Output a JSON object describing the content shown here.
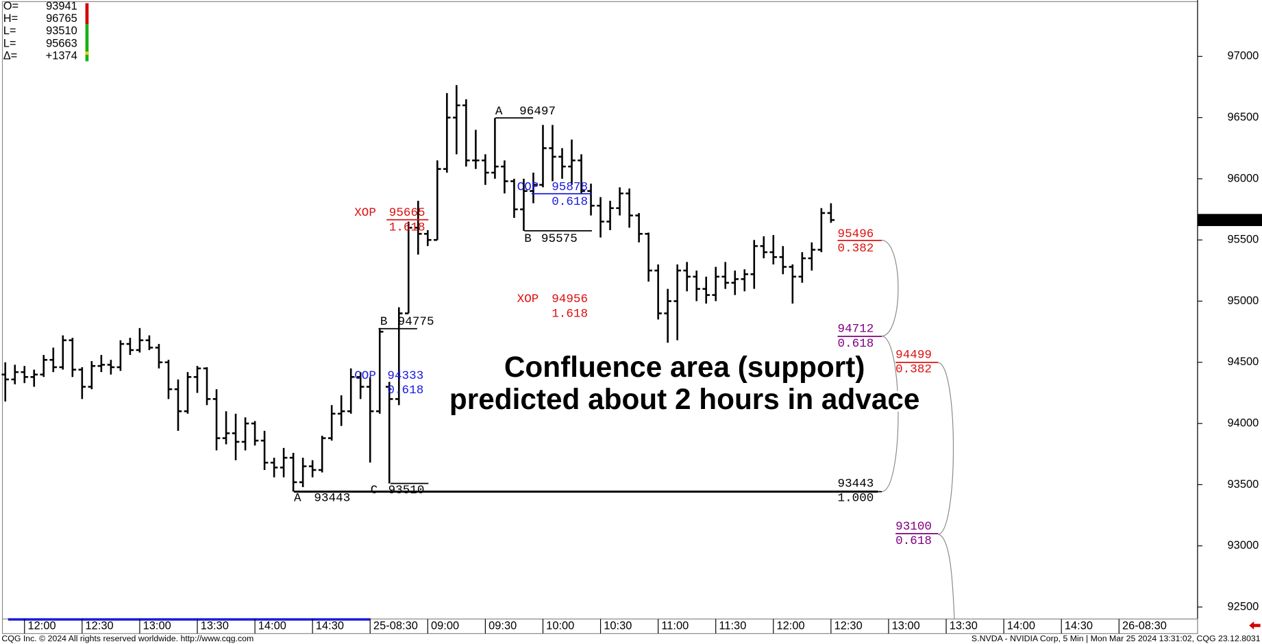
{
  "chart_data": {
    "type": "ohlc",
    "color": "#000000",
    "open": [
      94400,
      94360,
      94420,
      94380,
      94400,
      94520,
      94460,
      94680,
      94440,
      94300,
      94470,
      94480,
      94460,
      94650,
      94600,
      94680,
      94620,
      94500,
      94280,
      94100,
      94380,
      94450,
      94200,
      93880,
      93920,
      93850,
      94000,
      93860,
      93680,
      93640,
      93720,
      93520,
      93650,
      93620,
      93880,
      94080,
      94100,
      94380,
      94300,
      94100,
      94300,
      94200,
      94900,
      95600,
      95550,
      95500,
      96080,
      96500,
      96600,
      96150,
      96150,
      96050,
      96100,
      95980,
      95750,
      95900,
      95950,
      96250,
      96180,
      96100,
      96150,
      95900,
      95780,
      95650,
      95760,
      95880,
      95700,
      95550,
      95250,
      94900,
      95000,
      95250,
      95200,
      95100,
      95050,
      95200,
      95150,
      95180,
      95220,
      95450,
      95400,
      95360,
      95280,
      95200,
      95350,
      95420,
      95720
    ],
    "high": [
      94500,
      94480,
      94470,
      94440,
      94560,
      94620,
      94720,
      94700,
      94460,
      94510,
      94560,
      94520,
      94680,
      94700,
      94780,
      94720,
      94650,
      94520,
      94360,
      94420,
      94470,
      94460,
      94280,
      94100,
      94080,
      94050,
      94020,
      93940,
      93720,
      93800,
      93760,
      93720,
      93700,
      93900,
      94150,
      94230,
      94450,
      94420,
      94380,
      94780,
      94340,
      94950,
      95650,
      95820,
      95580,
      96150,
      96700,
      96765,
      96650,
      96400,
      96200,
      96497,
      96150,
      96000,
      96000,
      96050,
      96440,
      96440,
      96250,
      96320,
      96200,
      95960,
      95850,
      95820,
      95930,
      95920,
      95720,
      95560,
      95300,
      95100,
      95300,
      95320,
      95250,
      95200,
      95280,
      95320,
      95250,
      95260,
      95500,
      95530,
      95540,
      95450,
      95300,
      95400,
      95480,
      95760,
      95800
    ],
    "low": [
      94180,
      94320,
      94330,
      94300,
      94380,
      94420,
      94440,
      94380,
      94200,
      94280,
      94420,
      94400,
      94430,
      94560,
      94580,
      94600,
      94450,
      94200,
      93940,
      94080,
      94250,
      94150,
      93780,
      93830,
      93700,
      93780,
      93820,
      93620,
      93560,
      93560,
      93443,
      93480,
      93560,
      93600,
      93860,
      93980,
      94080,
      94200,
      93680,
      94080,
      93510,
      94150,
      94900,
      95380,
      95450,
      95500,
      96050,
      96200,
      96100,
      96080,
      95950,
      96000,
      95880,
      95680,
      95575,
      95800,
      95930,
      95980,
      96000,
      95950,
      95880,
      95700,
      95520,
      95580,
      95700,
      95600,
      95480,
      95160,
      94850,
      94660,
      94680,
      95080,
      95000,
      94980,
      95000,
      95100,
      95050,
      95080,
      95100,
      95350,
      95300,
      95220,
      94980,
      95150,
      95250,
      95400,
      95640
    ],
    "close": [
      94360,
      94420,
      94380,
      94400,
      94520,
      94460,
      94680,
      94440,
      94300,
      94470,
      94480,
      94460,
      94650,
      94600,
      94680,
      94620,
      94500,
      94280,
      94100,
      94380,
      94450,
      94200,
      93880,
      93920,
      93850,
      94000,
      93860,
      93680,
      93640,
      93720,
      93520,
      93650,
      93620,
      93880,
      94080,
      94100,
      94380,
      94300,
      94100,
      94750,
      94200,
      94900,
      95600,
      95550,
      95500,
      96080,
      96500,
      96600,
      96150,
      96150,
      96050,
      96100,
      95980,
      95750,
      95900,
      95950,
      96250,
      96180,
      96100,
      96150,
      95900,
      95780,
      95650,
      95760,
      95880,
      95700,
      95550,
      95250,
      94900,
      95000,
      95250,
      95200,
      95100,
      95050,
      95200,
      95150,
      95180,
      95220,
      95450,
      95400,
      95360,
      95280,
      95200,
      95350,
      95420,
      95720,
      95663
    ],
    "xlim": [
      -0.3,
      124.1
    ],
    "xticks": [
      {
        "value": 2,
        "label": "12:00"
      },
      {
        "value": 8,
        "label": "12:30"
      },
      {
        "value": 14,
        "label": "13:00"
      },
      {
        "value": 20,
        "label": "13:30"
      },
      {
        "value": 26,
        "label": "14:00"
      },
      {
        "value": 32,
        "label": "14:30"
      },
      {
        "value": 38,
        "label": "25-08:30"
      },
      {
        "value": 44,
        "label": "09:00"
      },
      {
        "value": 50,
        "label": "09:30"
      },
      {
        "value": 56,
        "label": "10:00"
      },
      {
        "value": 62,
        "label": "10:30"
      },
      {
        "value": 68,
        "label": "11:00"
      },
      {
        "value": 74,
        "label": "11:30"
      },
      {
        "value": 80,
        "label": "12:00"
      },
      {
        "value": 86,
        "label": "12:30"
      },
      {
        "value": 92,
        "label": "13:00"
      },
      {
        "value": 98,
        "label": "13:30"
      },
      {
        "value": 104,
        "label": "14:00"
      },
      {
        "value": 110,
        "label": "14:30"
      },
      {
        "value": 116,
        "label": "26-08:30"
      }
    ],
    "ylim": [
      92402,
      97461
    ],
    "yticks": [
      92500,
      93000,
      93500,
      94000,
      94500,
      95000,
      95500,
      96000,
      96500,
      97000
    ],
    "annotations": [
      {
        "label": "A",
        "price": 96497,
        "color": "#000000"
      },
      {
        "label": "COP",
        "price": 95878,
        "ratio": 0.618,
        "color": "#1a1adc"
      },
      {
        "label": "XOP",
        "price": 95665,
        "ratio": 1.618,
        "color": "#dd1111"
      },
      {
        "label": "B",
        "price": 95575,
        "color": "#000000"
      },
      {
        "label": "XOP",
        "price": 94956,
        "ratio": 1.618,
        "color": "#dd1111"
      },
      {
        "label": "B",
        "price": 94775,
        "color": "#000000"
      },
      {
        "label": "COP",
        "price": 94333,
        "ratio": 0.618,
        "color": "#1a1adc"
      },
      {
        "label": "C",
        "price": 93510,
        "color": "#000000"
      },
      {
        "label": "A",
        "price": 93443,
        "color": "#000000"
      },
      {
        "price": 95496,
        "ratio": 0.382,
        "color": "#dd1111"
      },
      {
        "price": 94712,
        "ratio": 0.618,
        "color": "#800080"
      },
      {
        "price": 93443,
        "ratio": {
          "value": 1,
          "label": "1.000"
        },
        "color": "#000000"
      },
      {
        "price": 94499,
        "ratio": 0.382,
        "color": "#dd1111"
      },
      {
        "price": 93100,
        "ratio": 0.618,
        "color": "#800080"
      }
    ],
    "callout": [
      "Confluence area (support)",
      "predicted about 2 hours in advace"
    ],
    "quote": [
      {
        "label": "O=",
        "value": 93941
      },
      {
        "label": "H=",
        "value": 96765
      },
      {
        "label": "L=",
        "value": 93510
      },
      {
        "label": "L=",
        "value": 95663
      },
      {
        "label": "Δ=",
        "value": {
          "value": 1374,
          "label": "+1374"
        }
      }
    ],
    "footer_left": "CQG Inc. © 2024 All rights reserved worldwide. http://www.cqg.com",
    "footer_right": "S.NVDA - NVIDIA Corp, 5 Min | Mon Mar 25 2024 13:31:02, CQG 23.12.8031"
  }
}
